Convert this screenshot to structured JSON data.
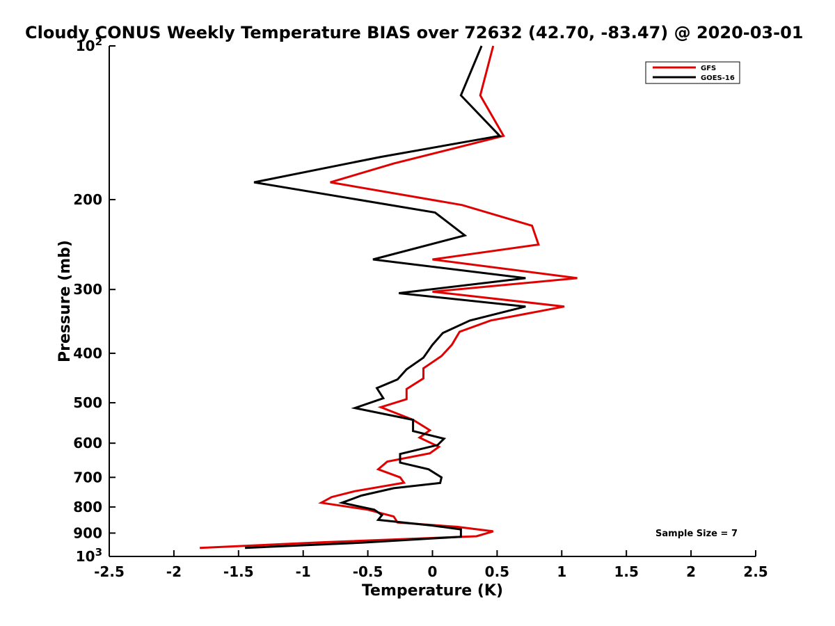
{
  "chart_data": {
    "type": "line",
    "title": "Cloudy CONUS Weekly Temperature BIAS over 72632 (42.70, -83.47) @ 2020-03-01",
    "xlabel": "Temperature (K)",
    "ylabel": "Pressure (mb)",
    "xlim": [
      -2.5,
      2.5
    ],
    "ylim": [
      100,
      1000
    ],
    "y_scale": "log",
    "y_reversed": true,
    "grid": false,
    "legend_position": "top-right",
    "x_ticks": [
      "-2.5",
      "-2",
      "-1.5",
      "-1",
      "-0.5",
      "0",
      "0.5",
      "1",
      "1.5",
      "2",
      "2.5"
    ],
    "x_tick_values": [
      -2.5,
      -2,
      -1.5,
      -1,
      -0.5,
      0,
      0.5,
      1,
      1.5,
      2,
      2.5
    ],
    "y_ticks": [
      {
        "value": 100,
        "base": "10",
        "exp": "2"
      },
      {
        "value": 200,
        "label": "200"
      },
      {
        "value": 300,
        "label": "300"
      },
      {
        "value": 400,
        "label": "400"
      },
      {
        "value": 500,
        "label": "500"
      },
      {
        "value": 600,
        "label": "600"
      },
      {
        "value": 700,
        "label": "700"
      },
      {
        "value": 800,
        "label": "800"
      },
      {
        "value": 900,
        "label": "900"
      },
      {
        "value": 1000,
        "base": "10",
        "exp": "3"
      }
    ],
    "series": [
      {
        "name": "GFS",
        "color": "#e00000",
        "points": [
          [
            0.47,
            100
          ],
          [
            0.37,
            125
          ],
          [
            0.55,
            150
          ],
          [
            -0.3,
            170
          ],
          [
            -0.79,
            185
          ],
          [
            0.23,
            205
          ],
          [
            0.77,
            225
          ],
          [
            0.82,
            245
          ],
          [
            0.0,
            262
          ],
          [
            1.12,
            285
          ],
          [
            0.0,
            303
          ],
          [
            1.02,
            324
          ],
          [
            0.45,
            345
          ],
          [
            0.21,
            363
          ],
          [
            0.15,
            385
          ],
          [
            0.07,
            405
          ],
          [
            -0.07,
            428
          ],
          [
            -0.07,
            448
          ],
          [
            -0.2,
            470
          ],
          [
            -0.2,
            492
          ],
          [
            -0.4,
            510
          ],
          [
            -0.15,
            540
          ],
          [
            -0.02,
            566
          ],
          [
            -0.1,
            585
          ],
          [
            0.05,
            610
          ],
          [
            -0.02,
            628
          ],
          [
            -0.35,
            652
          ],
          [
            -0.42,
            675
          ],
          [
            -0.25,
            700
          ],
          [
            -0.22,
            717
          ],
          [
            -0.6,
            745
          ],
          [
            -0.78,
            765
          ],
          [
            -0.86,
            785
          ],
          [
            -0.5,
            810
          ],
          [
            -0.3,
            835
          ],
          [
            -0.27,
            858
          ],
          [
            0.19,
            875
          ],
          [
            0.47,
            893
          ],
          [
            0.34,
            913
          ],
          [
            -0.85,
            938
          ],
          [
            -1.8,
            962
          ]
        ]
      },
      {
        "name": "GOES-16",
        "color": "#000000",
        "points": [
          [
            0.38,
            100
          ],
          [
            0.22,
            125
          ],
          [
            0.52,
            150
          ],
          [
            -0.4,
            165
          ],
          [
            -1.38,
            185
          ],
          [
            0.02,
            212
          ],
          [
            0.25,
            235
          ],
          [
            -0.46,
            262
          ],
          [
            0.72,
            285
          ],
          [
            -0.26,
            305
          ],
          [
            0.72,
            324
          ],
          [
            0.29,
            345
          ],
          [
            0.08,
            365
          ],
          [
            0.0,
            385
          ],
          [
            -0.07,
            408
          ],
          [
            -0.2,
            430
          ],
          [
            -0.27,
            450
          ],
          [
            -0.43,
            468
          ],
          [
            -0.38,
            490
          ],
          [
            -0.6,
            512
          ],
          [
            -0.15,
            540
          ],
          [
            -0.15,
            568
          ],
          [
            0.09,
            588
          ],
          [
            0.04,
            605
          ],
          [
            -0.25,
            630
          ],
          [
            -0.25,
            655
          ],
          [
            -0.03,
            675
          ],
          [
            0.07,
            700
          ],
          [
            0.06,
            718
          ],
          [
            -0.3,
            735
          ],
          [
            -0.55,
            760
          ],
          [
            -0.7,
            785
          ],
          [
            -0.45,
            810
          ],
          [
            -0.39,
            830
          ],
          [
            -0.42,
            848
          ],
          [
            0.0,
            870
          ],
          [
            0.22,
            885
          ],
          [
            0.22,
            915
          ],
          [
            -0.55,
            940
          ],
          [
            -1.45,
            962
          ]
        ]
      }
    ],
    "annotation": "Sample Size = 7"
  }
}
